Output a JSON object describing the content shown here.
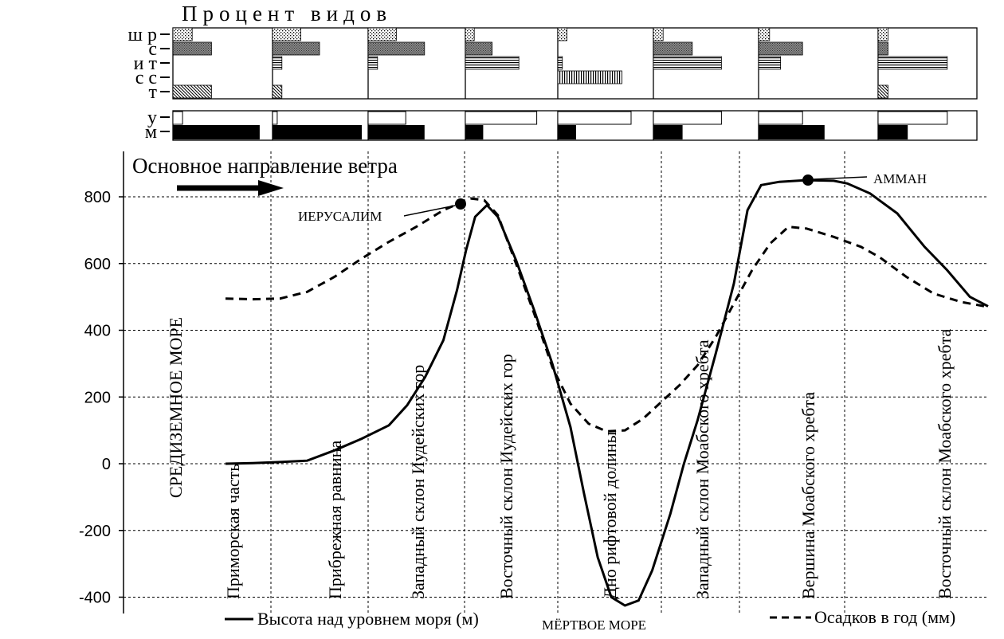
{
  "chart_data": {
    "type": "line",
    "title": "",
    "top_panel_title": "Процент видов",
    "wind_label": "Основное направление ветра",
    "ylim": [
      -430,
      880
    ],
    "yticks": [
      -400,
      -200,
      0,
      200,
      400,
      600,
      800
    ],
    "grid": true,
    "legend": {
      "elevation": "Высота над уровнем моря (м)",
      "precip": "Осадков в год (мм)"
    },
    "zones": [
      "Приморская часть",
      "Прибрежная равнина",
      "Западный склон Иудейских гор",
      "Восточный склон Иудейских гор",
      "Дно рифтовой долины",
      "Западный склон Моабского хребта",
      "Вершина Моабского хребта",
      "Восточный склон Моабского хребта"
    ],
    "sea_label": "СРЕДИЗЕМНОЕ МОРЕ",
    "annotations": {
      "jerusalem": "ИЕРУСАЛИМ",
      "amman": "АММАН",
      "dead_sea": "МЁРТВОЕ МОРЕ"
    },
    "elevation_series": [
      [
        0,
        0
      ],
      [
        0.3,
        2
      ],
      [
        0.6,
        5
      ],
      [
        0.9,
        9
      ],
      [
        1.2,
        40
      ],
      [
        1.5,
        75
      ],
      [
        1.8,
        115
      ],
      [
        2.0,
        175
      ],
      [
        2.2,
        260
      ],
      [
        2.4,
        370
      ],
      [
        2.55,
        520
      ],
      [
        2.65,
        640
      ],
      [
        2.75,
        740
      ],
      [
        2.88,
        775
      ],
      [
        3.0,
        740
      ],
      [
        3.2,
        610
      ],
      [
        3.4,
        460
      ],
      [
        3.6,
        300
      ],
      [
        3.8,
        110
      ],
      [
        3.95,
        -90
      ],
      [
        4.1,
        -280
      ],
      [
        4.25,
        -400
      ],
      [
        4.4,
        -425
      ],
      [
        4.55,
        -410
      ],
      [
        4.7,
        -320
      ],
      [
        4.9,
        -150
      ],
      [
        5.05,
        0
      ],
      [
        5.2,
        130
      ],
      [
        5.4,
        330
      ],
      [
        5.6,
        540
      ],
      [
        5.75,
        760
      ],
      [
        5.9,
        835
      ],
      [
        6.1,
        845
      ],
      [
        6.4,
        850
      ],
      [
        6.7,
        848
      ],
      [
        6.85,
        840
      ],
      [
        7.1,
        810
      ],
      [
        7.4,
        750
      ],
      [
        7.7,
        650
      ],
      [
        7.95,
        580
      ],
      [
        8.2,
        500
      ],
      [
        8.4,
        472
      ]
    ],
    "precip_series": [
      [
        0,
        495
      ],
      [
        0.3,
        493
      ],
      [
        0.6,
        495
      ],
      [
        0.9,
        515
      ],
      [
        1.2,
        560
      ],
      [
        1.5,
        615
      ],
      [
        1.8,
        665
      ],
      [
        2.1,
        710
      ],
      [
        2.4,
        760
      ],
      [
        2.7,
        795
      ],
      [
        2.85,
        790
      ],
      [
        3.0,
        745
      ],
      [
        3.2,
        600
      ],
      [
        3.4,
        450
      ],
      [
        3.6,
        290
      ],
      [
        3.8,
        180
      ],
      [
        4.0,
        120
      ],
      [
        4.2,
        97
      ],
      [
        4.4,
        100
      ],
      [
        4.6,
        135
      ],
      [
        4.8,
        185
      ],
      [
        5.0,
        235
      ],
      [
        5.2,
        295
      ],
      [
        5.4,
        380
      ],
      [
        5.6,
        480
      ],
      [
        5.8,
        580
      ],
      [
        6.0,
        660
      ],
      [
        6.2,
        710
      ],
      [
        6.4,
        705
      ],
      [
        6.7,
        680
      ],
      [
        7.0,
        650
      ],
      [
        7.2,
        620
      ],
      [
        7.5,
        560
      ],
      [
        7.8,
        510
      ],
      [
        8.1,
        485
      ],
      [
        8.4,
        470
      ]
    ],
    "top_panel": {
      "rows": [
        "ш р",
        "с",
        "и т",
        "с с",
        "т"
      ],
      "columns": [
        [
          20,
          40,
          0,
          0,
          40
        ],
        [
          30,
          50,
          10,
          0,
          10
        ],
        [
          30,
          60,
          10,
          0,
          0
        ],
        [
          10,
          30,
          60,
          0,
          0
        ],
        [
          10,
          0,
          5,
          70,
          0
        ],
        [
          10,
          40,
          70,
          0,
          0
        ],
        [
          10,
          40,
          20,
          0,
          0
        ],
        [
          10,
          10,
          70,
          0,
          10
        ]
      ]
    },
    "second_panel": {
      "rows": [
        "у",
        "м"
      ],
      "columns": [
        [
          10,
          90
        ],
        [
          5,
          95
        ],
        [
          40,
          60
        ],
        [
          80,
          20
        ],
        [
          80,
          20
        ],
        [
          70,
          30
        ],
        [
          40,
          60
        ],
        [
          70,
          30
        ]
      ]
    }
  }
}
